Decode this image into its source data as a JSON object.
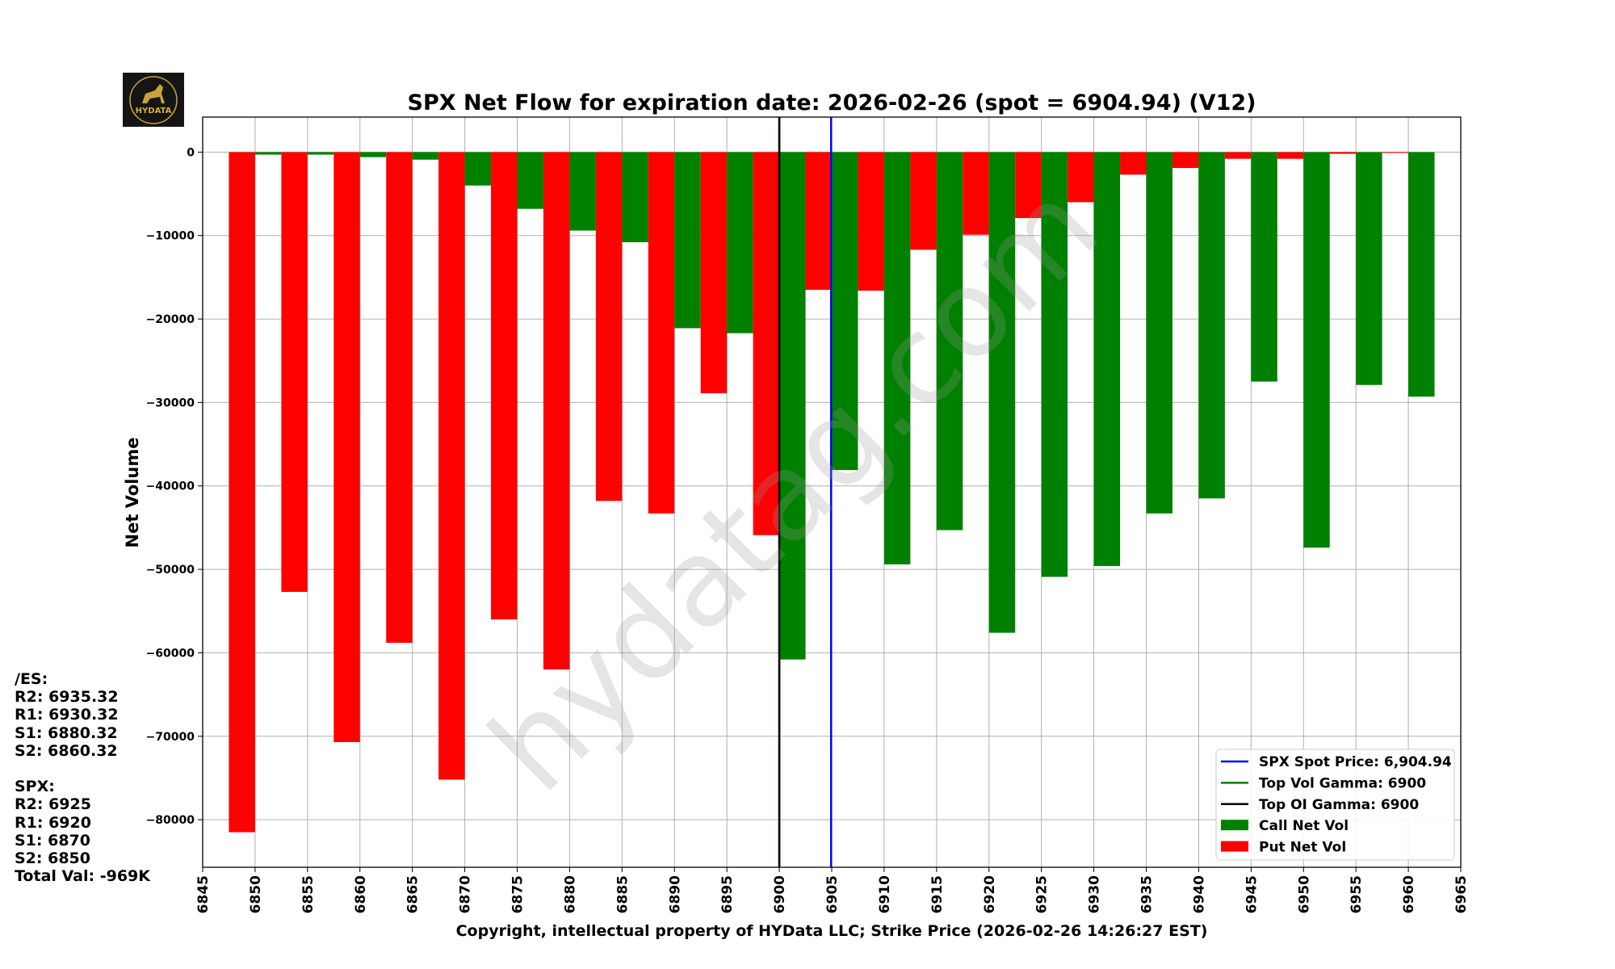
{
  "chart_data": {
    "type": "bar",
    "title": "SPX Net Flow for expiration date: 2026-02-26 (spot = 6904.94) (V12)",
    "xlabel": "Copyright, intellectual property of HYData LLC; Strike Price (2026-02-26 14:26:27 EST)",
    "ylabel": "Net Volume",
    "xlim": [
      6845,
      6965
    ],
    "ylim": [
      -85700,
      4200
    ],
    "grid": true,
    "legend_position": "bottom-right",
    "x_ticks": [
      "6845",
      "6850",
      "6855",
      "6860",
      "6865",
      "6870",
      "6875",
      "6880",
      "6885",
      "6890",
      "6895",
      "6900",
      "6905",
      "6910",
      "6915",
      "6920",
      "6925",
      "6930",
      "6935",
      "6940",
      "6945",
      "6950",
      "6955",
      "6960",
      "6965"
    ],
    "y_ticks": [
      "0",
      "−10000",
      "−20000",
      "−30000",
      "−40000",
      "−50000",
      "−60000",
      "−70000",
      "−80000"
    ],
    "y_tick_values": [
      0,
      -10000,
      -20000,
      -30000,
      -40000,
      -50000,
      -60000,
      -70000,
      -80000
    ],
    "strikes": [
      6850,
      6855,
      6860,
      6865,
      6870,
      6875,
      6880,
      6885,
      6890,
      6895,
      6900,
      6905,
      6910,
      6915,
      6920,
      6925,
      6930,
      6935,
      6940,
      6945,
      6950,
      6955,
      6960
    ],
    "series": [
      {
        "name": "Call Net Vol",
        "color": "#008000",
        "values": [
          -300,
          -300,
          -600,
          -900,
          -4000,
          -6800,
          -9400,
          -10800,
          -21100,
          -21700,
          -60800,
          -38100,
          -49400,
          -45300,
          -57600,
          -50900,
          -49600,
          -43300,
          -41500,
          -27500,
          -47400,
          -27900,
          -29300
        ]
      },
      {
        "name": "Put Net Vol",
        "color": "#ff0000",
        "values": [
          -81500,
          -52700,
          -70700,
          -58800,
          -75200,
          -56000,
          -62000,
          -41800,
          -43300,
          -28900,
          -45900,
          -16500,
          -16600,
          -11700,
          -9900,
          -7900,
          -6000,
          -2700,
          -1900,
          -800,
          -800,
          -200,
          -100
        ]
      }
    ],
    "lines": [
      {
        "name": "SPX Spot Price: 6,904.94",
        "x": 6904.94,
        "color": "#0000ff"
      },
      {
        "name": "Top Vol Gamma: 6900",
        "x": 6900,
        "color": "#008000"
      },
      {
        "name": "Top OI Gamma: 6900",
        "x": 6900,
        "color": "#000000"
      }
    ],
    "legend": [
      "SPX Spot Price: 6,904.94",
      "Top Vol Gamma: 6900",
      "Top OI Gamma: 6900",
      "Call Net Vol",
      "Put Net Vol"
    ]
  },
  "watermark": "hydatag.com",
  "logo": {
    "text": "HYDATA"
  },
  "levels": {
    "es_header": "/ES:",
    "es": [
      "R2: 6935.32",
      "R1: 6930.32",
      "S1: 6880.32",
      "S2: 6860.32"
    ],
    "spx_header": "SPX:",
    "spx": [
      "R2: 6925",
      "R1: 6920",
      "S1: 6870",
      "S2: 6850"
    ],
    "total": "Total Val: -969K"
  }
}
